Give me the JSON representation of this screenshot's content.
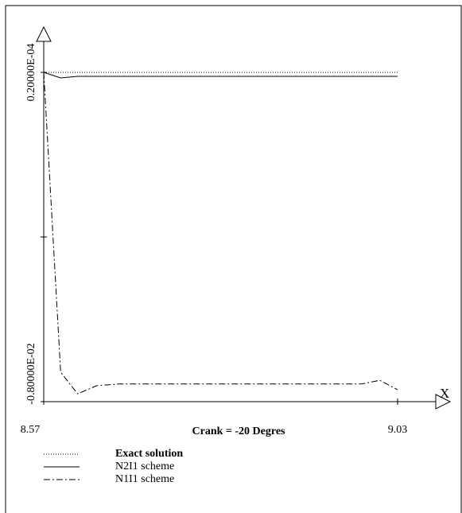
{
  "chart_data": {
    "type": "line",
    "xlabel": "Crank = -20 Degres",
    "x_axis_name": "X",
    "x": [
      8.57,
      8.592,
      8.614,
      8.639,
      8.668,
      8.983,
      9.007,
      9.03
    ],
    "xlim": [
      8.57,
      9.03
    ],
    "xticks": [
      8.57,
      9.03
    ],
    "ylim": [
      -0.008,
      2e-05
    ],
    "yticks": [
      {
        "value": 2e-05,
        "label": "0.20000E-04"
      },
      {
        "value": -0.00399,
        "label": null
      },
      {
        "value": -0.008,
        "label": "-0.80000E-02"
      }
    ],
    "series": [
      {
        "name": "Exact solution",
        "color": "#000000",
        "style": "dotted",
        "values": [
          2e-05,
          2e-05,
          2e-05,
          2e-05,
          2e-05,
          2e-05,
          2e-05,
          2e-05
        ]
      },
      {
        "name": "N2I1 scheme",
        "color": "#000000",
        "style": "solid",
        "values": [
          2e-05,
          -0.000116,
          -7.7e-05,
          -7.7e-05,
          -7.7e-05,
          -7.7e-05,
          -7.7e-05,
          -7.7e-05
        ]
      },
      {
        "name": "N1I1 scheme",
        "color": "#000000",
        "style": "dashdot",
        "values": [
          2e-05,
          -0.00728,
          -0.00781,
          -0.00761,
          -0.00757,
          -0.00757,
          -0.00748,
          -0.00771
        ]
      }
    ]
  }
}
